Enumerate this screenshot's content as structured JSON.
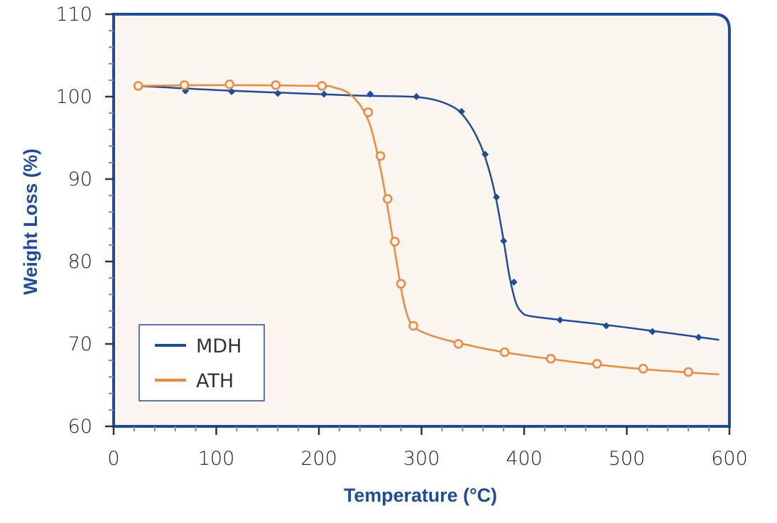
{
  "chart_data": {
    "type": "line",
    "title": "",
    "xlabel": "Temperature (°C)",
    "ylabel": "Weight Loss (%)",
    "xlim": [
      0,
      600
    ],
    "ylim": [
      60,
      110
    ],
    "xticks": [
      0,
      100,
      200,
      300,
      400,
      500,
      600
    ],
    "yticks": [
      60,
      70,
      80,
      90,
      100,
      110
    ],
    "xtick_labels": [
      "0",
      "100",
      "200",
      "300",
      "400",
      "500",
      "600"
    ],
    "ytick_labels": [
      "60",
      "70",
      "80",
      "90",
      "100",
      "110"
    ],
    "grid": false,
    "legend_position": "bottom-left",
    "background_color": "#fbf6f0",
    "series": [
      {
        "name": "MDH",
        "color": "#1e4c9c",
        "marker": "diamond",
        "curve": [
          [
            25,
            101.3
          ],
          [
            100,
            100.8
          ],
          [
            200,
            100.3
          ],
          [
            245,
            100.1
          ],
          [
            300,
            99.9
          ],
          [
            330,
            98.8
          ],
          [
            345,
            97.0
          ],
          [
            358,
            94.0
          ],
          [
            366,
            91.0
          ],
          [
            372,
            88.0
          ],
          [
            378,
            84.0
          ],
          [
            382,
            81.0
          ],
          [
            386,
            78.0
          ],
          [
            392,
            75.0
          ],
          [
            398,
            73.8
          ],
          [
            405,
            73.4
          ],
          [
            430,
            73.0
          ],
          [
            480,
            72.3
          ],
          [
            530,
            71.5
          ],
          [
            590,
            70.5
          ]
        ],
        "markers": [
          [
            70,
            100.7
          ],
          [
            115,
            100.6
          ],
          [
            160,
            100.4
          ],
          [
            205,
            100.3
          ],
          [
            250,
            100.3
          ],
          [
            295,
            100.0
          ],
          [
            339,
            98.2
          ],
          [
            362,
            93.0
          ],
          [
            373,
            87.8
          ],
          [
            380,
            82.5
          ],
          [
            390,
            77.5
          ],
          [
            435,
            72.9
          ],
          [
            480,
            72.2
          ],
          [
            525,
            71.5
          ],
          [
            570,
            70.8
          ]
        ]
      },
      {
        "name": "ATH",
        "color": "#f0873a",
        "marker": "circle",
        "curve": [
          [
            22,
            101.3
          ],
          [
            100,
            101.4
          ],
          [
            200,
            101.3
          ],
          [
            215,
            101.1
          ],
          [
            228,
            100.5
          ],
          [
            240,
            99.0
          ],
          [
            250,
            96.5
          ],
          [
            258,
            92.5
          ],
          [
            265,
            88.0
          ],
          [
            271,
            83.5
          ],
          [
            277,
            79.0
          ],
          [
            282,
            75.5
          ],
          [
            287,
            73.2
          ],
          [
            293,
            72.0
          ],
          [
            310,
            71.0
          ],
          [
            340,
            70.0
          ],
          [
            380,
            69.0
          ],
          [
            430,
            68.1
          ],
          [
            470,
            67.5
          ],
          [
            520,
            66.9
          ],
          [
            590,
            66.3
          ]
        ],
        "markers": [
          [
            24,
            101.3
          ],
          [
            69,
            101.4
          ],
          [
            113,
            101.5
          ],
          [
            158,
            101.4
          ],
          [
            203,
            101.3
          ],
          [
            248,
            98.1
          ],
          [
            260,
            92.8
          ],
          [
            267,
            87.6
          ],
          [
            274,
            82.4
          ],
          [
            280,
            77.3
          ],
          [
            292,
            72.2
          ],
          [
            336,
            70.0
          ],
          [
            381,
            69.0
          ],
          [
            426,
            68.2
          ],
          [
            471,
            67.6
          ],
          [
            516,
            67.0
          ],
          [
            560,
            66.6
          ]
        ]
      }
    ]
  }
}
